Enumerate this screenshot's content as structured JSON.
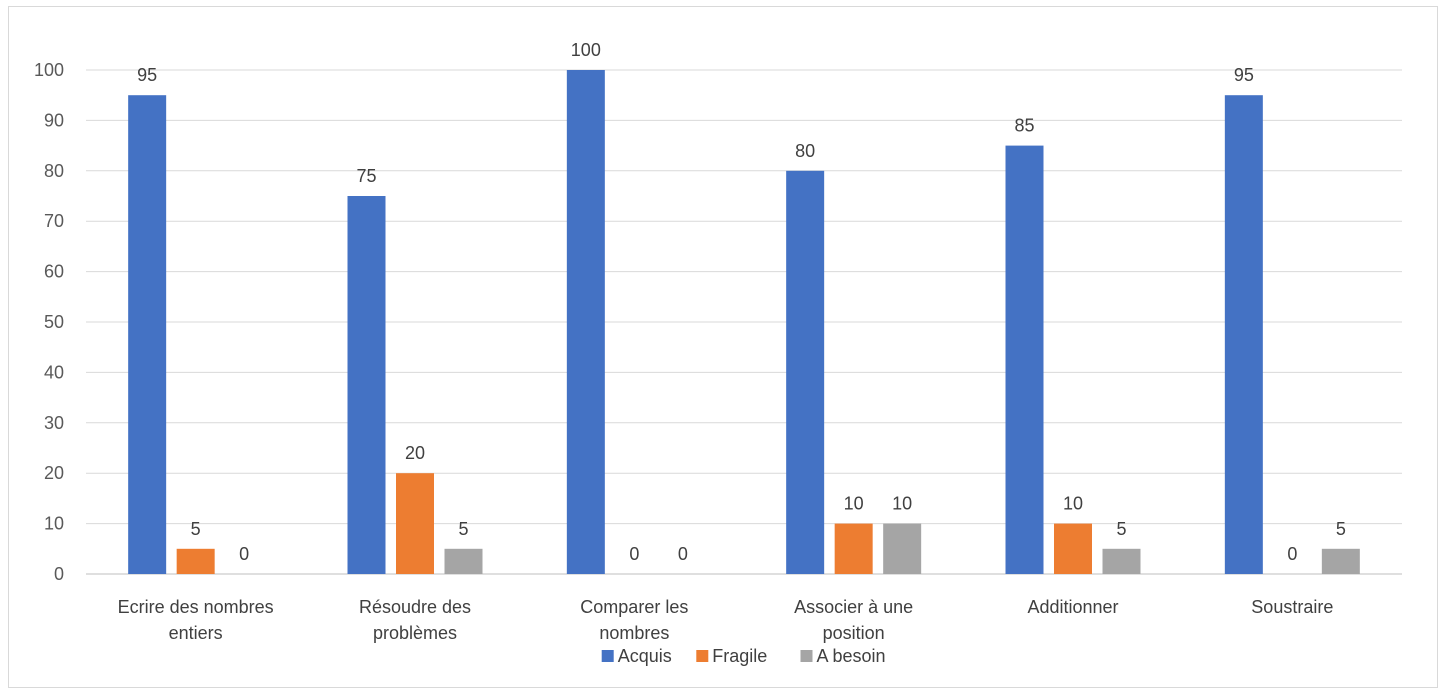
{
  "chart_data": {
    "type": "bar",
    "title": "",
    "xlabel": "",
    "ylabel": "",
    "ylim": [
      0,
      100
    ],
    "ytick_step": 10,
    "grid": true,
    "legend_position": "bottom",
    "categories": [
      [
        "Ecrire des nombres",
        "entiers"
      ],
      [
        "Résoudre des",
        "problèmes"
      ],
      [
        "Comparer les",
        "nombres"
      ],
      [
        "Associer à une",
        "position"
      ],
      [
        "Additionner"
      ],
      [
        "Soustraire"
      ]
    ],
    "series": [
      {
        "name": "Acquis",
        "color": "#4472C4",
        "values": [
          95,
          75,
          100,
          80,
          85,
          95
        ]
      },
      {
        "name": "Fragile",
        "color": "#ED7D31",
        "values": [
          5,
          20,
          0,
          10,
          10,
          0
        ]
      },
      {
        "name": "A besoin",
        "color": "#A5A5A5",
        "values": [
          0,
          5,
          0,
          10,
          5,
          5
        ]
      }
    ]
  }
}
